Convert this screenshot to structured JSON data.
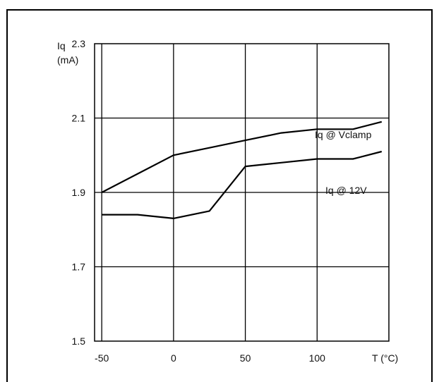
{
  "chart_data": {
    "type": "line",
    "title": "",
    "ylabel_line1": "Iq",
    "ylabel_line2": "(mA)",
    "xlabel": "T (°C)",
    "xlim": [
      -55,
      150
    ],
    "ylim": [
      1.5,
      2.3
    ],
    "x_ticks": [
      "-50",
      "0",
      "50",
      "100"
    ],
    "x_tick_values": [
      -50,
      0,
      50,
      100
    ],
    "y_ticks": [
      "2.3",
      "2.1",
      "1.9",
      "1.7",
      "1.5"
    ],
    "y_tick_values": [
      2.3,
      2.1,
      1.9,
      1.7,
      1.5
    ],
    "grid": true,
    "series": [
      {
        "name": "Iq @ Vclamp",
        "x": [
          -50,
          -25,
          0,
          25,
          50,
          75,
          100,
          125,
          145
        ],
        "y": [
          1.9,
          1.95,
          2.0,
          2.02,
          2.04,
          2.06,
          2.07,
          2.07,
          2.09
        ]
      },
      {
        "name": "Iq @ 12V",
        "x": [
          -50,
          -25,
          0,
          25,
          50,
          75,
          100,
          125,
          145
        ],
        "y": [
          1.84,
          1.84,
          1.83,
          1.85,
          1.97,
          1.98,
          1.99,
          1.99,
          2.01
        ]
      }
    ]
  }
}
